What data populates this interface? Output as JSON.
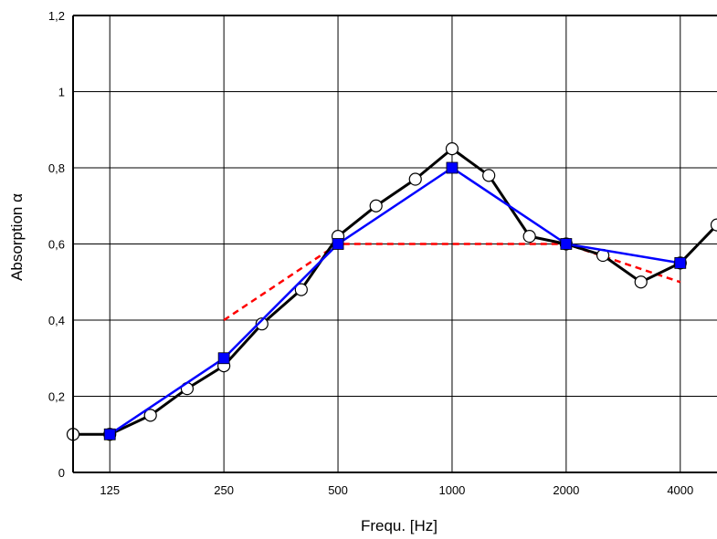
{
  "chart_data": {
    "type": "line",
    "title": "",
    "xlabel": "Frequ. [Hz]",
    "ylabel": "Absorption α",
    "x_scale": "log",
    "xlim": [
      100,
      5000
    ],
    "ylim": [
      0,
      1.2
    ],
    "grid": true,
    "x_ticks": [
      {
        "value": 125,
        "label": "125"
      },
      {
        "value": 250,
        "label": "250"
      },
      {
        "value": 500,
        "label": "500"
      },
      {
        "value": 1000,
        "label": "1000"
      },
      {
        "value": 2000,
        "label": "2000"
      },
      {
        "value": 4000,
        "label": "4000"
      }
    ],
    "y_ticks": [
      {
        "value": 0,
        "label": "0"
      },
      {
        "value": 0.2,
        "label": "0,2"
      },
      {
        "value": 0.4,
        "label": "0,4"
      },
      {
        "value": 0.6,
        "label": "0,6"
      },
      {
        "value": 0.8,
        "label": "0,8"
      },
      {
        "value": 1.0,
        "label": "1"
      },
      {
        "value": 1.2,
        "label": "1,2"
      }
    ],
    "series": [
      {
        "color": "#ff0000",
        "line_style": "dashed",
        "marker": "none",
        "points": [
          {
            "x": 250,
            "y": 0.4
          },
          {
            "x": 500,
            "y": 0.6
          },
          {
            "x": 1000,
            "y": 0.6
          },
          {
            "x": 2000,
            "y": 0.6
          },
          {
            "x": 4000,
            "y": 0.5
          }
        ]
      },
      {
        "color": "#000000",
        "line_style": "solid",
        "marker": "open-circle",
        "points": [
          {
            "x": 100,
            "y": 0.1
          },
          {
            "x": 125,
            "y": 0.1
          },
          {
            "x": 160,
            "y": 0.15
          },
          {
            "x": 200,
            "y": 0.22
          },
          {
            "x": 250,
            "y": 0.28
          },
          {
            "x": 315,
            "y": 0.39
          },
          {
            "x": 400,
            "y": 0.48
          },
          {
            "x": 500,
            "y": 0.62
          },
          {
            "x": 630,
            "y": 0.7
          },
          {
            "x": 800,
            "y": 0.77
          },
          {
            "x": 1000,
            "y": 0.85
          },
          {
            "x": 1250,
            "y": 0.78
          },
          {
            "x": 1600,
            "y": 0.62
          },
          {
            "x": 2000,
            "y": 0.6
          },
          {
            "x": 2500,
            "y": 0.57
          },
          {
            "x": 3150,
            "y": 0.5
          },
          {
            "x": 4000,
            "y": 0.55
          },
          {
            "x": 5000,
            "y": 0.65
          }
        ]
      },
      {
        "color": "#0000ff",
        "line_style": "solid",
        "marker": "filled-square",
        "points": [
          {
            "x": 125,
            "y": 0.1
          },
          {
            "x": 250,
            "y": 0.3
          },
          {
            "x": 500,
            "y": 0.6
          },
          {
            "x": 1000,
            "y": 0.8
          },
          {
            "x": 2000,
            "y": 0.6
          },
          {
            "x": 4000,
            "y": 0.55
          }
        ]
      }
    ]
  }
}
